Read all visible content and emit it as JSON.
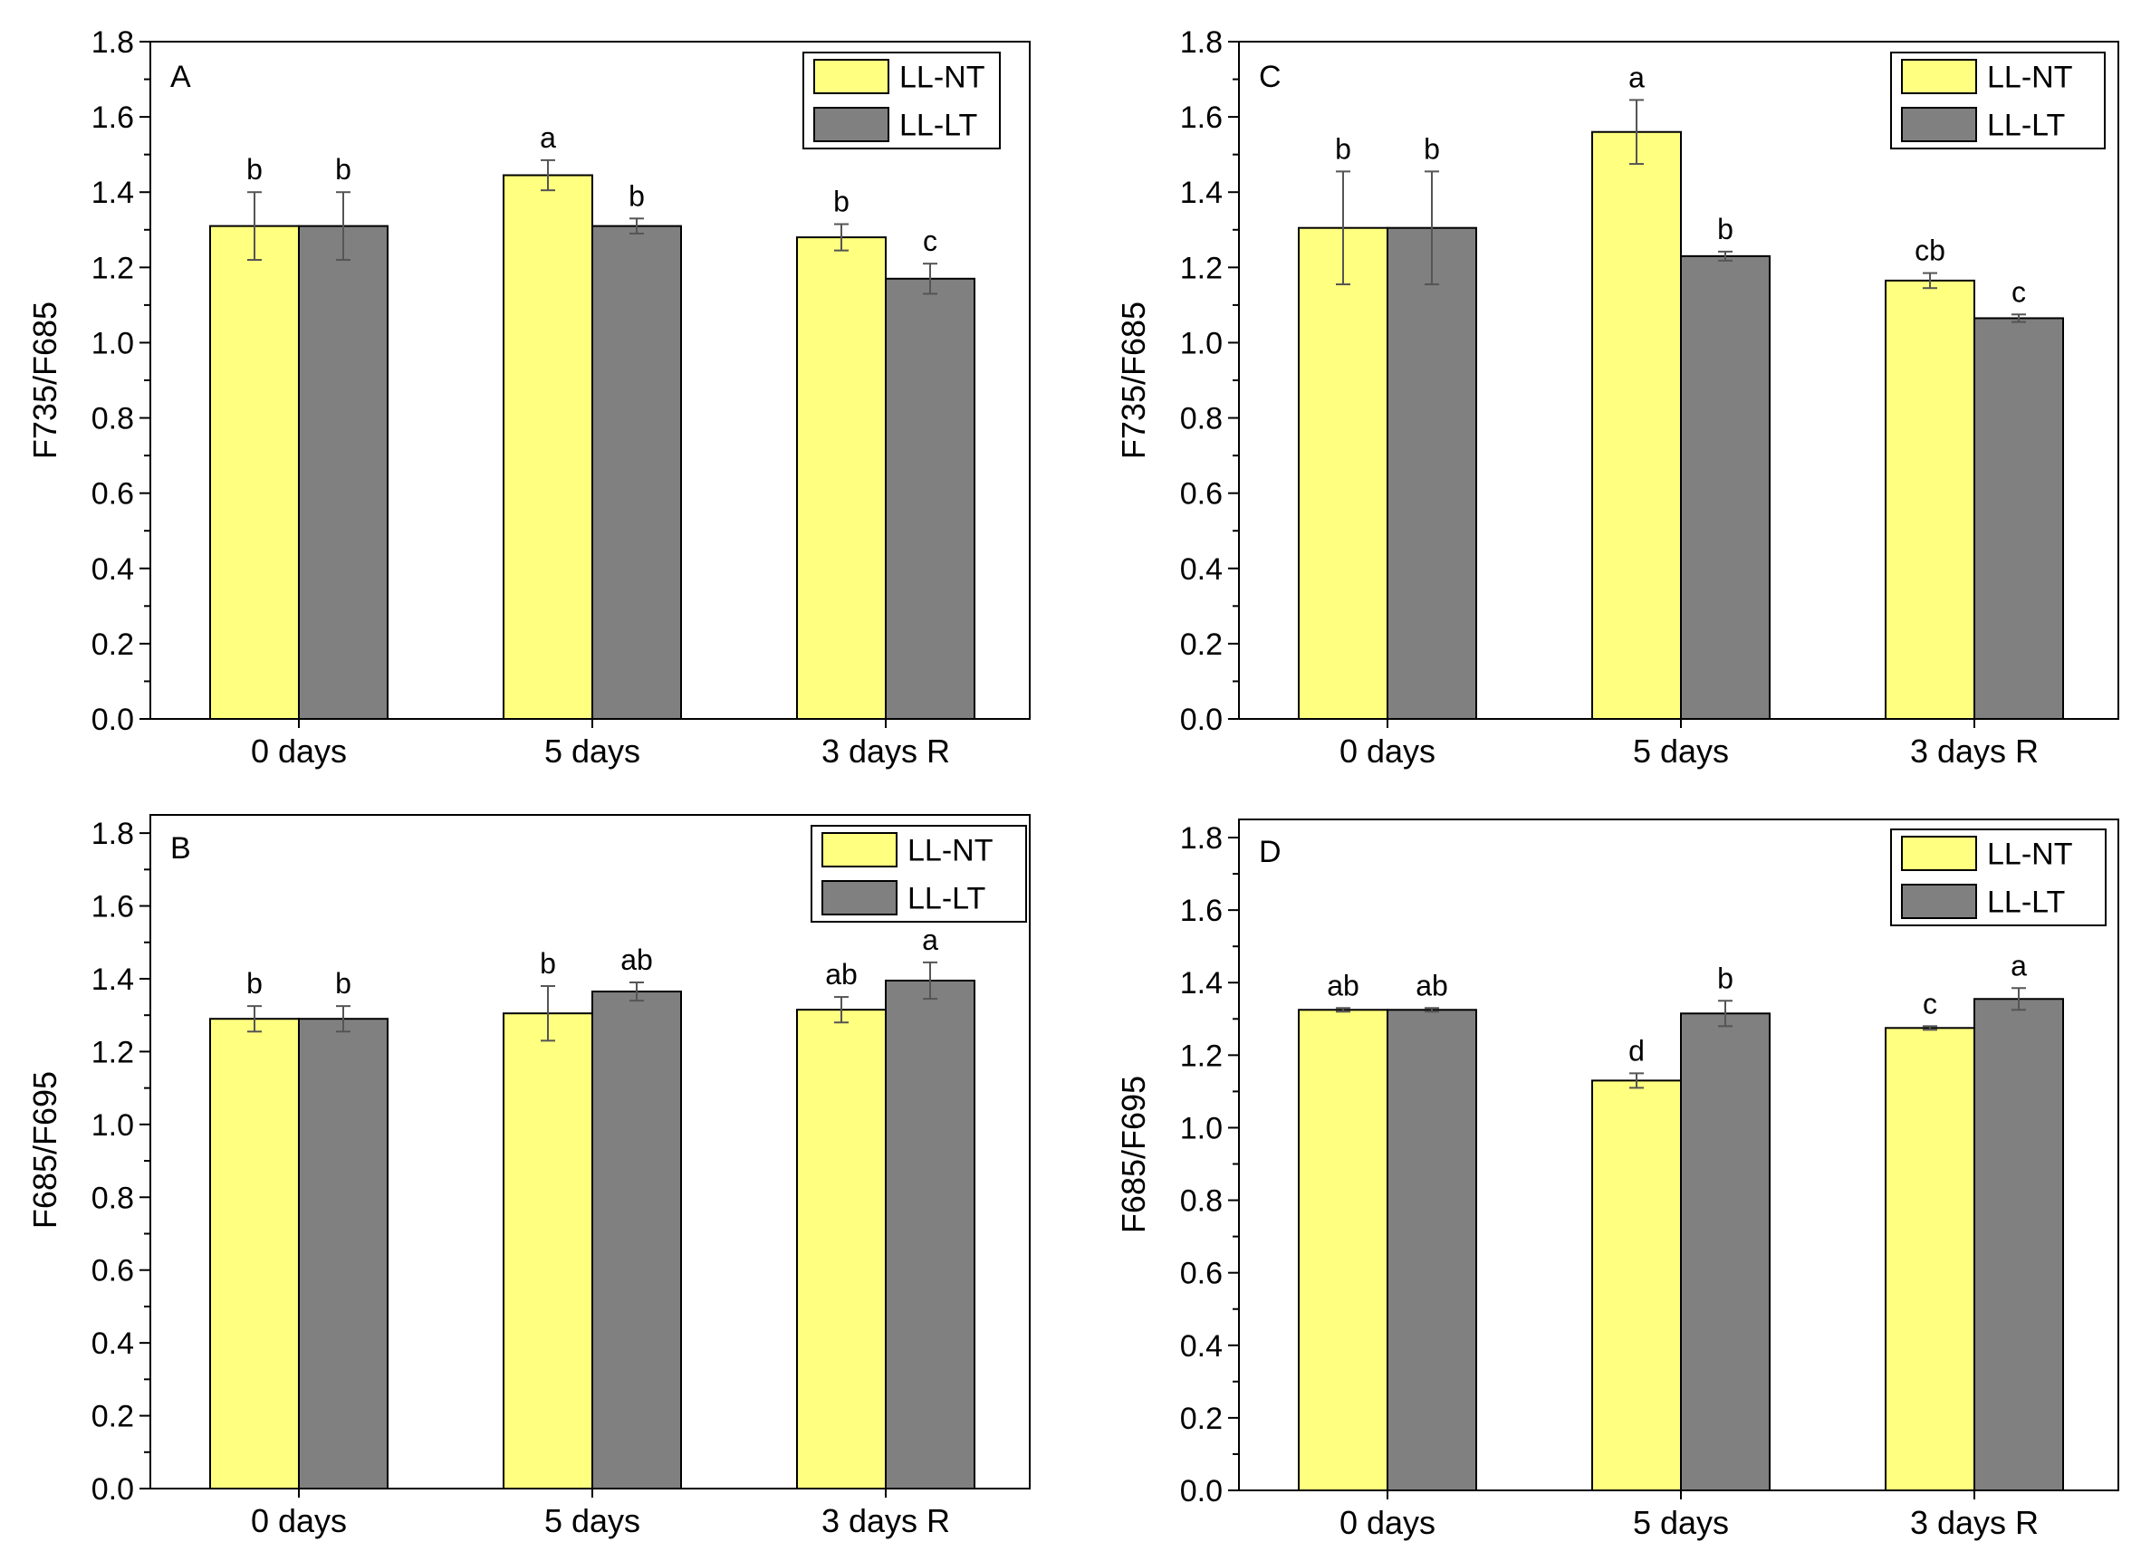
{
  "colors": {
    "nt": "#ffff80",
    "lt": "#808080",
    "axis": "#000000"
  },
  "chart_data": [
    {
      "id": "A",
      "type": "bar",
      "panel_label": "A",
      "ylabel": "F735/F685",
      "ylim": [
        0,
        1.8
      ],
      "yticks": [
        0.0,
        0.2,
        0.4,
        0.6,
        0.8,
        1.0,
        1.2,
        1.4,
        1.6,
        1.8
      ],
      "ytick_labels": [
        "0.0",
        "0.2",
        "0.4",
        "0.6",
        "0.8",
        "1.0",
        "1.2",
        "1.4",
        "1.6",
        "1.8"
      ],
      "categories": [
        "0 days",
        "5 days",
        "3 days R"
      ],
      "legend_position": "top-right",
      "series": [
        {
          "name": "LL-NT",
          "color": "#ffff80",
          "values": [
            1.31,
            1.445,
            1.28
          ],
          "errors": [
            0.09,
            0.04,
            0.035
          ],
          "letters": [
            "b",
            "a",
            "b"
          ]
        },
        {
          "name": "LL-LT",
          "color": "#808080",
          "values": [
            1.31,
            1.31,
            1.17
          ],
          "errors": [
            0.09,
            0.02,
            0.04
          ],
          "letters": [
            "b",
            "b",
            "c"
          ]
        }
      ]
    },
    {
      "id": "C",
      "type": "bar",
      "panel_label": "C",
      "ylabel": "F735/F685",
      "ylim": [
        0,
        1.8
      ],
      "yticks": [
        0.0,
        0.2,
        0.4,
        0.6,
        0.8,
        1.0,
        1.2,
        1.4,
        1.6,
        1.8
      ],
      "ytick_labels": [
        "0.0",
        "0.2",
        "0.4",
        "0.6",
        "0.8",
        "1.0",
        "1.2",
        "1.4",
        "1.6",
        "1.8"
      ],
      "categories": [
        "0 days",
        "5 days",
        "3 days R"
      ],
      "legend_position": "top-right",
      "series": [
        {
          "name": "LL-NT",
          "color": "#ffff80",
          "values": [
            1.305,
            1.56,
            1.165
          ],
          "errors": [
            0.15,
            0.085,
            0.02
          ],
          "letters": [
            "b",
            "a",
            "cb"
          ]
        },
        {
          "name": "LL-LT",
          "color": "#808080",
          "values": [
            1.305,
            1.23,
            1.065
          ],
          "errors": [
            0.15,
            0.012,
            0.01
          ],
          "letters": [
            "b",
            "b",
            "c"
          ]
        }
      ]
    },
    {
      "id": "B",
      "type": "bar",
      "panel_label": "B",
      "ylabel": "F685/F695",
      "ylim": [
        0,
        1.85
      ],
      "yticks": [
        0.0,
        0.2,
        0.4,
        0.6,
        0.8,
        1.0,
        1.2,
        1.4,
        1.6,
        1.8
      ],
      "ytick_labels": [
        "0.0",
        "0.2",
        "0.4",
        "0.6",
        "0.8",
        "1.0",
        "1.2",
        "1.4",
        "1.6",
        "1.8"
      ],
      "categories": [
        "0 days",
        "5 days",
        "3 days R"
      ],
      "legend_position": "top-right",
      "series": [
        {
          "name": "LL-NT",
          "color": "#ffff80",
          "values": [
            1.29,
            1.305,
            1.315
          ],
          "errors": [
            0.035,
            0.075,
            0.035
          ],
          "letters": [
            "b",
            "b",
            "ab"
          ]
        },
        {
          "name": "LL-LT",
          "color": "#808080",
          "values": [
            1.29,
            1.365,
            1.395
          ],
          "errors": [
            0.035,
            0.025,
            0.05
          ],
          "letters": [
            "b",
            "ab",
            "a"
          ]
        }
      ]
    },
    {
      "id": "D",
      "type": "bar",
      "panel_label": "D",
      "ylabel": "F685/F695",
      "ylim": [
        0,
        1.85
      ],
      "yticks": [
        0.0,
        0.2,
        0.4,
        0.6,
        0.8,
        1.0,
        1.2,
        1.4,
        1.6,
        1.8
      ],
      "ytick_labels": [
        "0.0",
        "0.2",
        "0.4",
        "0.6",
        "0.8",
        "1.0",
        "1.2",
        "1.4",
        "1.6",
        "1.8"
      ],
      "categories": [
        "0 days",
        "5 days",
        "3 days R"
      ],
      "legend_position": "top-right",
      "series": [
        {
          "name": "LL-NT",
          "color": "#ffff80",
          "values": [
            1.325,
            1.13,
            1.275
          ],
          "errors": [
            0.005,
            0.02,
            0.005
          ],
          "letters": [
            "ab",
            "d",
            "c"
          ]
        },
        {
          "name": "LL-LT",
          "color": "#808080",
          "values": [
            1.325,
            1.315,
            1.355
          ],
          "errors": [
            0.005,
            0.035,
            0.03
          ],
          "letters": [
            "ab",
            "b",
            "a"
          ]
        }
      ]
    }
  ]
}
